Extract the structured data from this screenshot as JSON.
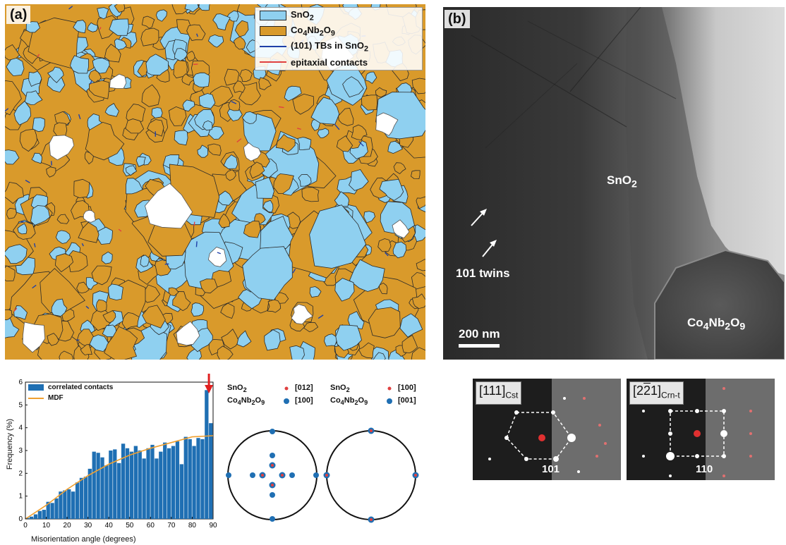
{
  "panel_a": {
    "label": "(a)",
    "legend": {
      "items": [
        {
          "label": "SnO2",
          "swatch": "#8fd0f0"
        },
        {
          "label": "Co4Nb2O9",
          "swatch": "#d99a2b"
        },
        {
          "label": "(101) TBs in SnO2",
          "line_color": "#1f3fa8"
        },
        {
          "label": "epitaxial contacts",
          "line_color": "#e04040"
        }
      ]
    }
  },
  "panel_b": {
    "label": "(b)",
    "sno2_label": "SnO2",
    "twins_label": "101 twins",
    "scalebar_label": "200 nm",
    "co_label": "Co4Nb2O9"
  },
  "histogram": {
    "ylabel": "Frequency (%)",
    "xlabel": "Misorientation angle (degrees)",
    "legend": [
      "correlated contacts",
      "MDF"
    ],
    "colors": {
      "bars": "#1f6fb3",
      "mdf": "#f0a030",
      "arrow": "#e02020"
    }
  },
  "pole_figures": [
    {
      "phase1": "SnO2",
      "dir1": "[012]",
      "phase2": "Co4Nb2O9",
      "dir2": "[100]"
    },
    {
      "phase1": "SnO2",
      "dir1": "[100]",
      "phase2": "Co4Nb2O9",
      "dir2": "[001]"
    }
  ],
  "saed": [
    {
      "zone": "[111]",
      "sub": "Cst",
      "spot": "101"
    },
    {
      "zone": "[2̄2̄1]",
      "sub": "Crn-t",
      "spot": "110"
    }
  ],
  "chart_data": {
    "type": "bar",
    "x": [
      2,
      4,
      6,
      8,
      10,
      12,
      14,
      16,
      18,
      20,
      22,
      24,
      26,
      28,
      30,
      32,
      34,
      36,
      38,
      40,
      42,
      44,
      46,
      48,
      50,
      52,
      54,
      56,
      58,
      60,
      62,
      64,
      66,
      68,
      70,
      72,
      74,
      76,
      78,
      80,
      82,
      84,
      86,
      88,
      90
    ],
    "values": [
      0.05,
      0.1,
      0.2,
      0.35,
      0.4,
      0.75,
      0.7,
      0.9,
      1.2,
      1.25,
      1.3,
      1.2,
      1.6,
      1.8,
      1.85,
      2.2,
      2.95,
      2.9,
      2.7,
      2.35,
      3.0,
      3.05,
      2.45,
      3.3,
      3.1,
      2.95,
      3.2,
      3.0,
      2.65,
      3.1,
      3.25,
      2.65,
      2.95,
      3.35,
      3.1,
      3.2,
      3.4,
      2.4,
      3.6,
      3.5,
      3.2,
      3.55,
      3.5,
      5.65,
      4.2
    ],
    "mdf": {
      "x": [
        0,
        10,
        20,
        30,
        40,
        50,
        60,
        70,
        80,
        90
      ],
      "y": [
        0,
        0.6,
        1.3,
        1.9,
        2.4,
        2.8,
        3.1,
        3.35,
        3.6,
        3.65
      ]
    },
    "xlim": [
      0,
      90
    ],
    "ylim": [
      0,
      6
    ],
    "xticks": [
      0,
      10,
      20,
      30,
      40,
      50,
      60,
      70,
      80,
      90
    ],
    "yticks": [
      0,
      1,
      2,
      3,
      4,
      5,
      6
    ],
    "arrow_at": 88
  }
}
